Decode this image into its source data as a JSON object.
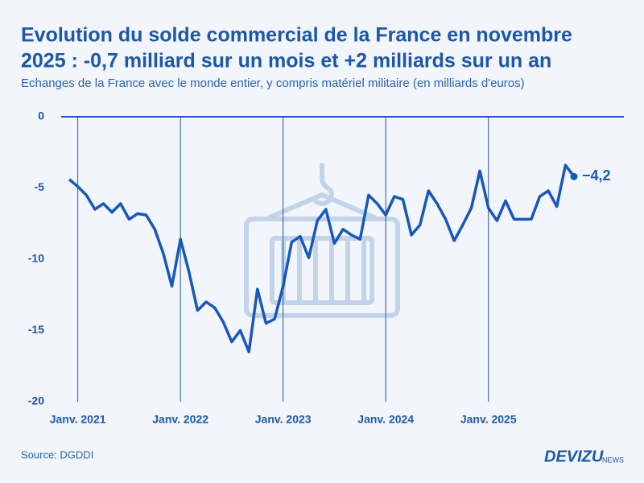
{
  "chart_data": {
    "type": "line",
    "title_lines": [
      "Evolution du solde commercial de la France en novembre",
      "2025 : -0,7 milliard sur un mois et +2 milliards sur un an"
    ],
    "subtitle": "Echanges de la France avec le monde entier, y compris matériel militaire (en milliards d'euros)",
    "source": "Source: DGDDI",
    "brand": "DEVIZU",
    "brand_suffix": "NEWS",
    "categories": [
      null,
      "Janv. 2021",
      null,
      null,
      null,
      null,
      null,
      null,
      null,
      null,
      null,
      null,
      null,
      "Janv. 2022",
      null,
      null,
      null,
      null,
      null,
      null,
      null,
      null,
      null,
      null,
      null,
      "Janv. 2023",
      null,
      null,
      null,
      null,
      null,
      null,
      null,
      null,
      null,
      null,
      null,
      "Janv. 2024",
      null,
      null,
      null,
      null,
      null,
      null,
      null,
      null,
      null,
      null,
      null,
      "Janv. 2025",
      null,
      null,
      null,
      null,
      null,
      null,
      null,
      null,
      null,
      null
    ],
    "values": [
      -4.4,
      -4.9,
      -5.5,
      -6.5,
      -6.1,
      -6.7,
      -6.1,
      -7.2,
      -6.8,
      -6.9,
      -7.9,
      -9.6,
      -11.9,
      -8.6,
      -10.9,
      -13.6,
      -13.0,
      -13.4,
      -14.4,
      -15.8,
      -15.0,
      -16.5,
      -12.1,
      -14.5,
      -14.2,
      -11.9,
      -8.8,
      -8.4,
      -9.9,
      -7.3,
      -6.5,
      -8.9,
      -7.9,
      -8.3,
      -8.6,
      -5.5,
      -6.1,
      -6.9,
      -5.6,
      -5.8,
      -8.3,
      -7.6,
      -5.2,
      -6.1,
      -7.2,
      -8.7,
      -7.6,
      -6.4,
      -3.8,
      -6.4,
      -7.3,
      -5.9,
      -7.2,
      -7.2,
      -7.2,
      -5.6,
      -5.2,
      -6.3,
      -3.4,
      -4.2
    ],
    "value_labels": [
      null,
      null,
      null,
      null,
      null,
      null,
      null,
      null,
      null,
      null,
      null,
      null,
      null,
      null,
      null,
      null,
      null,
      null,
      null,
      null,
      null,
      null,
      null,
      null,
      null,
      null,
      null,
      null,
      null,
      null,
      null,
      null,
      null,
      null,
      null,
      null,
      null,
      null,
      null,
      null,
      null,
      null,
      null,
      null,
      null,
      null,
      null,
      null,
      null,
      null,
      null,
      null,
      null,
      null,
      null,
      null,
      null,
      null,
      null,
      "−4,2"
    ],
    "color": "#1858b8",
    "ylim": [
      -20,
      0
    ],
    "yticks": [
      0,
      -5,
      -10,
      -15,
      -20
    ],
    "grid": true
  }
}
